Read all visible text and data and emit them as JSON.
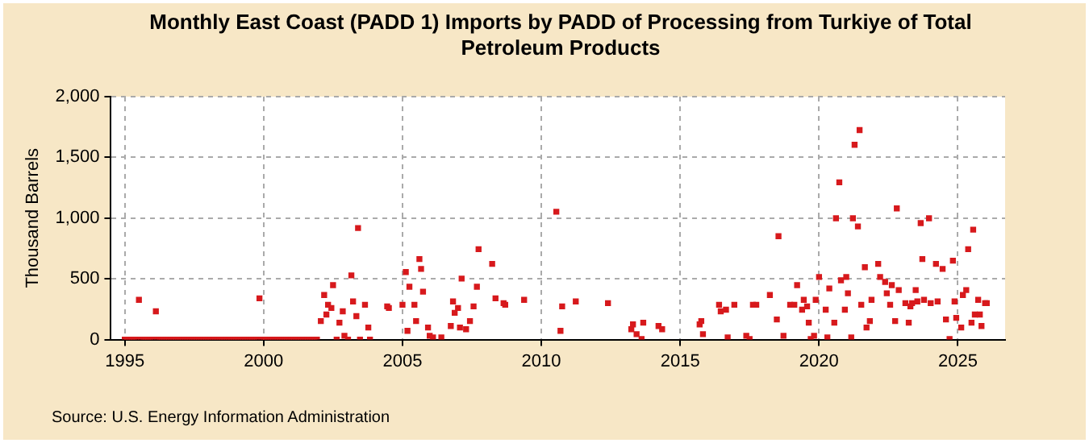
{
  "chart_data": {
    "type": "scatter",
    "title": "Monthly East Coast (PADD 1) Imports by PADD of Processing from Turkiye of Total Petroleum Products",
    "ylabel": "Thousand Barrels",
    "annotations": [
      "Source: U.S. Energy Information Administration"
    ],
    "marker": "square",
    "grid": true,
    "legend": false,
    "xlim": [
      1994.5,
      2026.7
    ],
    "xticks": [
      1995,
      2000,
      2005,
      2010,
      2015,
      2020,
      2025
    ],
    "ylim": [
      0,
      2000
    ],
    "yticks": [
      0,
      500,
      {
        "value": 1000,
        "label": "1,000"
      },
      {
        "value": 1500,
        "label": "1,500"
      },
      {
        "value": 2000,
        "label": "2,000"
      }
    ],
    "series": [
      {
        "color": "#d7191c",
        "x": [
          1995.0,
          1995.08,
          1995.17,
          1995.25,
          1995.33,
          1995.42,
          1995.58,
          1995.67,
          1995.75,
          1995.83,
          1995.92,
          1996.0,
          1996.17,
          1996.25,
          1996.33,
          1996.42,
          1996.5,
          1996.58,
          1996.67,
          1996.75,
          1996.83,
          1996.92,
          1997.0,
          1997.08,
          1997.17,
          1997.25,
          1997.33,
          1997.42,
          1997.5,
          1997.58,
          1997.67,
          1997.75,
          1997.83,
          1997.92,
          1998.0,
          1998.08,
          1998.17,
          1998.25,
          1998.33,
          1998.42,
          1998.5,
          1998.58,
          1998.67,
          1998.75,
          1998.83,
          1998.92,
          1999.0,
          1999.08,
          1999.17,
          1999.25,
          1999.33,
          1999.42,
          1999.5,
          1999.58,
          1999.67,
          1999.75,
          1999.92,
          2000.0,
          2000.08,
          2000.17,
          2000.25,
          2000.33,
          2000.42,
          2000.5,
          2000.58,
          2000.67,
          2000.75,
          2000.83,
          2000.92,
          2001.0,
          2001.08,
          2001.17,
          2001.25,
          2001.33,
          2001.42,
          2001.5,
          2001.58,
          2001.67,
          2001.75,
          2001.83,
          2001.92,
          1995.51,
          1996.12,
          1999.85,
          2002.06,
          2002.18,
          2002.26,
          2002.32,
          2002.44,
          2002.5,
          2002.63,
          2002.73,
          2002.85,
          2002.91,
          2003.04,
          2003.16,
          2003.22,
          2003.34,
          2003.4,
          2003.47,
          2003.65,
          2003.77,
          2003.83,
          2004.45,
          2004.51,
          2005.0,
          2005.12,
          2005.18,
          2005.25,
          2005.43,
          2005.49,
          2005.61,
          2005.67,
          2005.74,
          2005.92,
          2005.98,
          2006.1,
          2006.4,
          2006.74,
          2006.82,
          2006.88,
          2007.0,
          2007.07,
          2007.13,
          2007.29,
          2007.43,
          2007.56,
          2007.68,
          2007.74,
          2008.23,
          2008.35,
          2008.64,
          2008.7,
          2009.38,
          2010.54,
          2010.69,
          2010.75,
          2011.24,
          2012.4,
          2013.24,
          2013.3,
          2013.43,
          2013.61,
          2013.67,
          2014.22,
          2014.35,
          2015.7,
          2015.76,
          2015.82,
          2016.4,
          2016.46,
          2016.65,
          2016.71,
          2016.95,
          2017.38,
          2017.5,
          2017.62,
          2017.74,
          2018.23,
          2018.48,
          2018.54,
          2018.72,
          2018.96,
          2019.11,
          2019.21,
          2019.39,
          2019.45,
          2019.57,
          2019.63,
          2019.7,
          2019.82,
          2019.88,
          2020.0,
          2020.24,
          2020.3,
          2020.37,
          2020.55,
          2020.61,
          2020.73,
          2020.79,
          2020.93,
          2020.98,
          2021.04,
          2021.16,
          2021.22,
          2021.28,
          2021.4,
          2021.46,
          2021.52,
          2021.65,
          2021.71,
          2021.83,
          2021.89,
          2022.13,
          2022.2,
          2022.38,
          2022.44,
          2022.56,
          2022.62,
          2022.74,
          2022.8,
          2022.87,
          2023.11,
          2023.23,
          2023.29,
          2023.35,
          2023.48,
          2023.54,
          2023.66,
          2023.72,
          2023.78,
          2023.96,
          2024.02,
          2024.21,
          2024.27,
          2024.45,
          2024.57,
          2024.7,
          2024.82,
          2024.88,
          2024.94,
          2025.12,
          2025.18,
          2025.3,
          2025.37,
          2025.49,
          2025.55,
          2025.61,
          2025.73,
          2025.79,
          2025.85,
          2025.98,
          2026.04
        ],
        "values": [
          0,
          0,
          0,
          0,
          0,
          0,
          0,
          0,
          0,
          0,
          0,
          0,
          0,
          0,
          0,
          0,
          0,
          0,
          0,
          0,
          0,
          0,
          0,
          0,
          0,
          0,
          0,
          0,
          0,
          0,
          0,
          0,
          0,
          0,
          0,
          0,
          0,
          0,
          0,
          0,
          0,
          0,
          0,
          0,
          0,
          0,
          0,
          0,
          0,
          0,
          0,
          0,
          0,
          0,
          0,
          0,
          0,
          0,
          0,
          0,
          0,
          0,
          0,
          0,
          0,
          0,
          0,
          0,
          0,
          0,
          0,
          0,
          0,
          0,
          0,
          0,
          0,
          0,
          0,
          0,
          0,
          327,
          233,
          340,
          152,
          367,
          206,
          287,
          260,
          448,
          0,
          139,
          233,
          31,
          0,
          529,
          314,
          193,
          918,
          0,
          287,
          99,
          0,
          273,
          260,
          287,
          556,
          72,
          435,
          287,
          152,
          663,
          582,
          394,
          99,
          31,
          18,
          18,
          112,
          314,
          220,
          260,
          99,
          502,
          85,
          152,
          273,
          435,
          744,
          623,
          340,
          300,
          287,
          327,
          1053,
          72,
          273,
          314,
          300,
          85,
          125,
          45,
          4,
          139,
          112,
          85,
          125,
          152,
          45,
          287,
          233,
          246,
          18,
          287,
          31,
          4,
          287,
          287,
          367,
          166,
          851,
          31,
          287,
          287,
          448,
          246,
          327,
          273,
          139,
          4,
          31,
          327,
          515,
          246,
          18,
          421,
          139,
          999,
          1295,
          488,
          246,
          515,
          381,
          18,
          999,
          1604,
          932,
          1725,
          287,
          596,
          99,
          152,
          327,
          623,
          515,
          475,
          381,
          287,
          448,
          152,
          1080,
          408,
          300,
          139,
          273,
          300,
          408,
          314,
          959,
          663,
          327,
          999,
          300,
          623,
          314,
          582,
          166,
          4,
          650,
          314,
          179,
          99,
          367,
          408,
          744,
          139,
          905,
          206,
          327,
          206,
          112,
          300,
          300
        ]
      }
    ]
  }
}
